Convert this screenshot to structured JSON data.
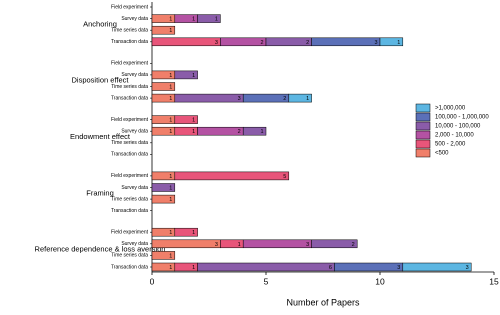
{
  "chart_data": {
    "type": "stacked-bar-horizontal",
    "groups": [
      "Anchoring",
      "Disposition effect",
      "Endowment effect",
      "Framing",
      "Reference dependence & loss aversion"
    ],
    "categories": [
      "Field experiment",
      "Survey data",
      "Time series data",
      "Transaction data",
      "Field experiment",
      "Survey data",
      "Time series data",
      "Transaction data",
      "Field experiment",
      "Survey data",
      "Time series data",
      "Transaction data",
      "Field experiment",
      "Survey data",
      "Time series data",
      "Transaction data",
      "Field experiment",
      "Survey data",
      "Time series data",
      "Transaction data"
    ],
    "series": [
      {
        "name": "<500",
        "color": "#f07f6a",
        "values": [
          null,
          1,
          1,
          null,
          null,
          1,
          1,
          1,
          1,
          1,
          null,
          null,
          1,
          null,
          1,
          null,
          1,
          3,
          1,
          1
        ]
      },
      {
        "name": "500 - 2,000",
        "color": "#e8557a",
        "values": [
          null,
          null,
          null,
          3,
          null,
          null,
          null,
          null,
          1,
          1,
          null,
          null,
          5,
          null,
          null,
          null,
          1,
          1,
          null,
          1
        ]
      },
      {
        "name": "2,000 - 10,000",
        "color": "#b452a3",
        "values": [
          null,
          1,
          null,
          2,
          null,
          null,
          null,
          null,
          null,
          2,
          null,
          null,
          null,
          null,
          null,
          null,
          null,
          3,
          null,
          null
        ]
      },
      {
        "name": "10,000 - 100,000",
        "color": "#8a5ca9",
        "values": [
          null,
          1,
          null,
          2,
          null,
          1,
          null,
          3,
          null,
          1,
          null,
          null,
          null,
          1,
          null,
          null,
          null,
          2,
          null,
          6
        ]
      },
      {
        "name": "100,000 - 1,000,000",
        "color": "#5b70b8",
        "values": [
          null,
          null,
          null,
          3,
          null,
          null,
          null,
          2,
          null,
          null,
          null,
          null,
          null,
          null,
          null,
          null,
          null,
          null,
          null,
          3
        ]
      },
      {
        "name": ">1,000,000",
        "color": "#5cb6e2",
        "values": [
          null,
          null,
          null,
          1,
          null,
          null,
          null,
          1,
          null,
          null,
          null,
          null,
          null,
          null,
          null,
          null,
          null,
          null,
          null,
          3
        ]
      }
    ],
    "xlim": [
      0,
      15
    ],
    "xticks": [
      0,
      5,
      10,
      15
    ],
    "xlabel": "Number of Papers"
  }
}
